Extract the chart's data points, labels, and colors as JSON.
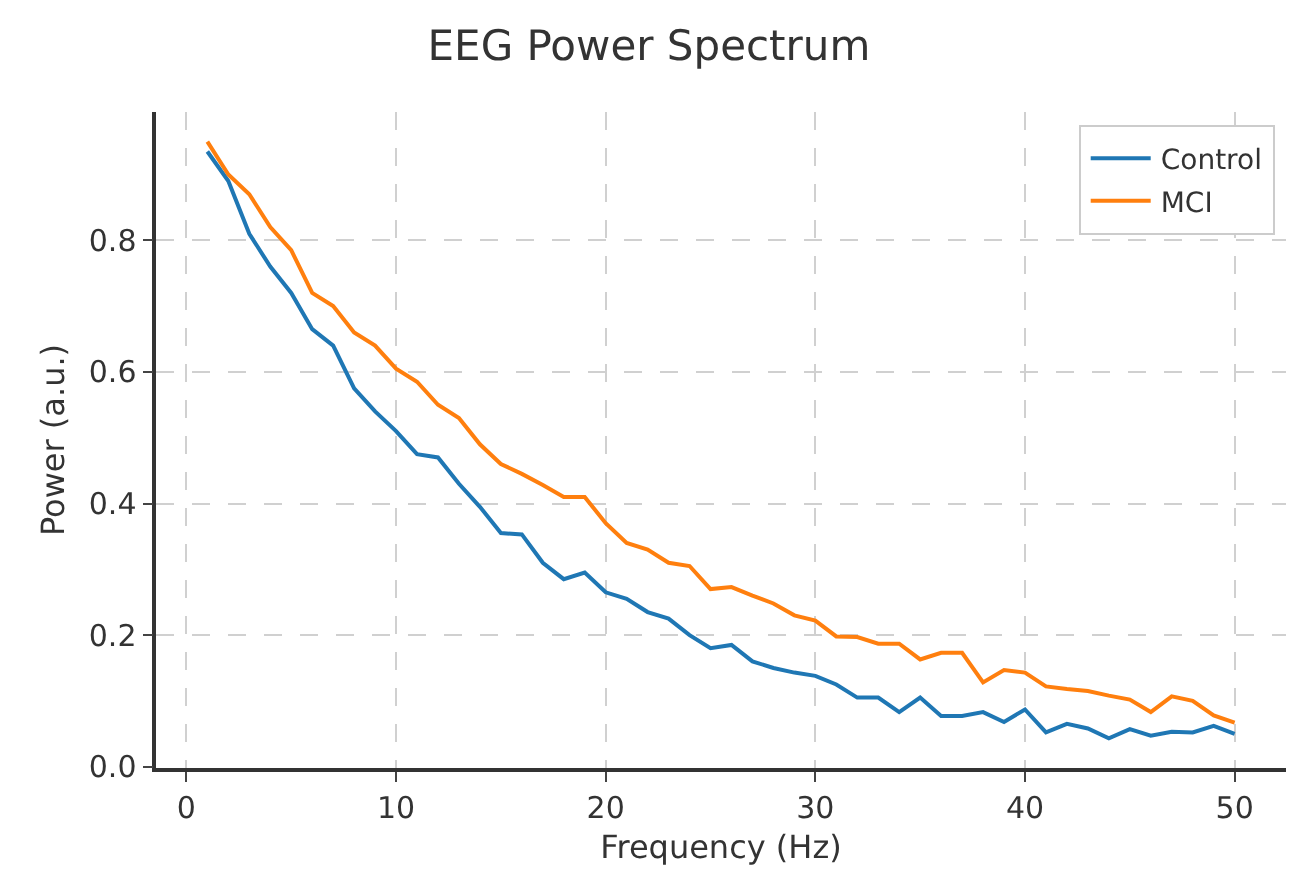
{
  "chart_data": {
    "type": "line",
    "title": "EEG Power Spectrum",
    "xlabel": "Frequency (Hz)",
    "ylabel": "Power (a.u.)",
    "x": [
      1,
      2,
      3,
      4,
      5,
      6,
      7,
      8,
      9,
      10,
      11,
      12,
      13,
      14,
      15,
      16,
      17,
      18,
      19,
      20,
      21,
      22,
      23,
      24,
      25,
      26,
      27,
      28,
      29,
      30,
      31,
      32,
      33,
      34,
      35,
      36,
      37,
      38,
      39,
      40,
      41,
      42,
      43,
      44,
      45,
      46,
      47,
      48,
      49,
      50
    ],
    "series": [
      {
        "name": "Control",
        "color": "#1f77b4",
        "values": [
          0.935,
          0.89,
          0.81,
          0.76,
          0.72,
          0.665,
          0.64,
          0.575,
          0.54,
          0.51,
          0.475,
          0.47,
          0.43,
          0.395,
          0.355,
          0.353,
          0.31,
          0.285,
          0.295,
          0.265,
          0.255,
          0.235,
          0.225,
          0.2,
          0.18,
          0.185,
          0.16,
          0.15,
          0.143,
          0.138,
          0.125,
          0.105,
          0.105,
          0.083,
          0.105,
          0.077,
          0.077,
          0.083,
          0.068,
          0.087,
          0.052,
          0.065,
          0.058,
          0.043,
          0.057,
          0.047,
          0.053,
          0.052,
          0.062,
          0.05
        ]
      },
      {
        "name": "MCI",
        "color": "#ff7f0e",
        "values": [
          0.95,
          0.9,
          0.87,
          0.82,
          0.785,
          0.72,
          0.7,
          0.66,
          0.64,
          0.605,
          0.585,
          0.55,
          0.53,
          0.49,
          0.46,
          0.445,
          0.428,
          0.41,
          0.41,
          0.37,
          0.34,
          0.33,
          0.31,
          0.305,
          0.27,
          0.273,
          0.26,
          0.248,
          0.23,
          0.222,
          0.198,
          0.197,
          0.187,
          0.187,
          0.163,
          0.173,
          0.173,
          0.128,
          0.147,
          0.143,
          0.122,
          0.118,
          0.115,
          0.108,
          0.102,
          0.083,
          0.107,
          0.1,
          0.078,
          0.067
        ]
      }
    ],
    "xlim": [
      -1.45,
      52.45
    ],
    "xticks": [
      0,
      10,
      20,
      30,
      40,
      50
    ],
    "ylim": [
      -0.002,
      0.995
    ],
    "yticks": [
      {
        "value": 0,
        "label": "0.0"
      },
      {
        "value": 0.2,
        "label": "0.2"
      },
      {
        "value": 0.4,
        "label": "0.4"
      },
      {
        "value": 0.6,
        "label": "0.6"
      },
      {
        "value": 0.8,
        "label": "0.8"
      }
    ],
    "grid": true,
    "legend": "top right",
    "marker": "none",
    "line_style": "solid"
  }
}
